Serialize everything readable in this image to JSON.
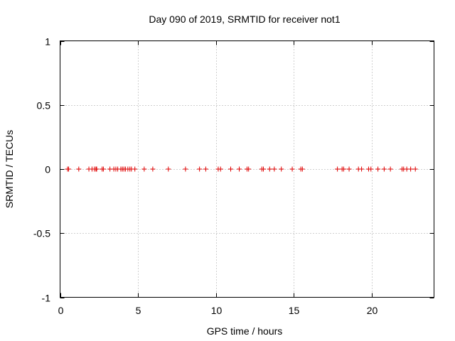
{
  "chart_data": {
    "type": "scatter",
    "title": "Day 090 of 2019, SRMTID for receiver not1",
    "xlabel": "GPS time / hours",
    "ylabel": "SRMTID / TECUs",
    "xlim": [
      0,
      24
    ],
    "ylim": [
      -1,
      1
    ],
    "xticks": [
      0,
      5,
      10,
      15,
      20
    ],
    "xtick_labels": [
      "0",
      "5",
      "10",
      "15",
      "20"
    ],
    "yticks": [
      -1,
      -0.5,
      0,
      0.5,
      1
    ],
    "ytick_labels": [
      "-1",
      "-0.5",
      "0",
      "0.5",
      "1"
    ],
    "grid": true,
    "marker": "+",
    "series": [
      {
        "name": "SRMTID",
        "color": "#e00000",
        "x": [
          0.48,
          0.55,
          1.2,
          1.85,
          2.05,
          2.2,
          2.3,
          2.35,
          2.7,
          2.78,
          3.2,
          3.45,
          3.58,
          3.7,
          3.9,
          4.0,
          4.1,
          4.2,
          4.35,
          4.48,
          4.58,
          4.8,
          5.4,
          5.95,
          6.95,
          8.05,
          8.95,
          9.35,
          10.15,
          10.3,
          10.95,
          11.5,
          12.0,
          12.1,
          12.95,
          13.05,
          13.45,
          13.75,
          14.2,
          14.9,
          15.45,
          15.55,
          17.8,
          18.1,
          18.2,
          18.55,
          19.15,
          19.35,
          19.8,
          19.95,
          20.4,
          20.8,
          21.2,
          21.95,
          22.05,
          22.25,
          22.5,
          22.8
        ],
        "y": [
          0,
          0,
          0,
          0,
          0,
          0,
          0,
          0,
          0,
          0,
          0,
          0,
          0,
          0,
          0,
          0,
          0,
          0,
          0,
          0,
          0,
          0,
          0,
          0,
          0,
          0,
          0,
          0,
          0,
          0,
          0,
          0,
          0,
          0,
          0,
          0,
          0,
          0,
          0,
          0,
          0,
          0,
          0,
          0,
          0,
          0,
          0,
          0,
          0,
          0,
          0,
          0,
          0,
          0,
          0,
          0,
          0,
          0
        ]
      }
    ]
  }
}
